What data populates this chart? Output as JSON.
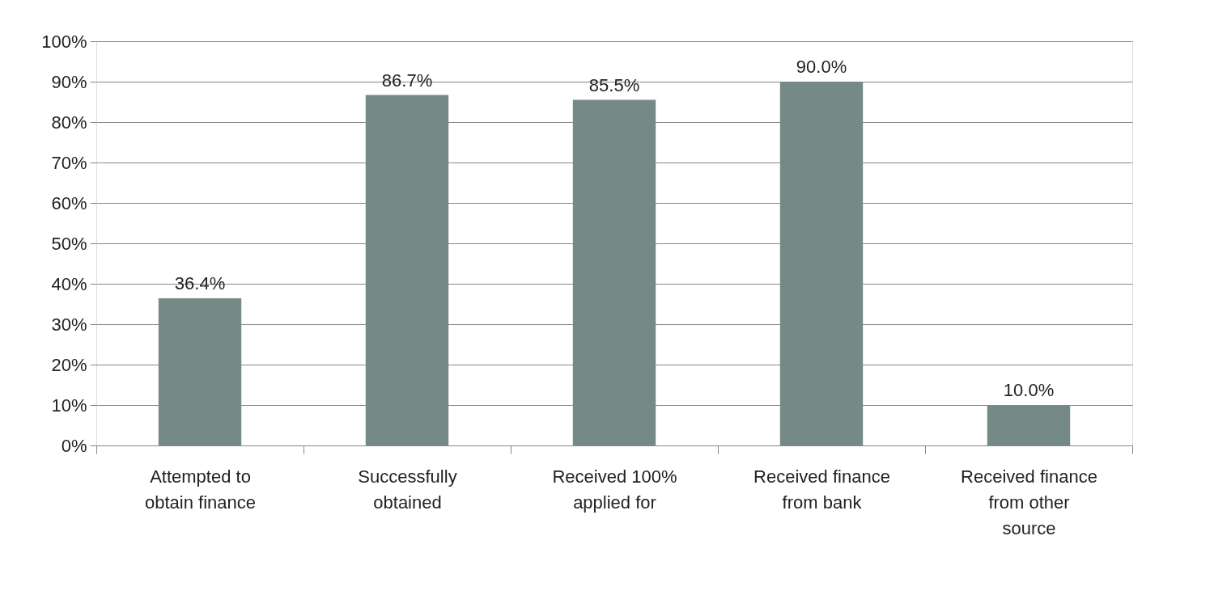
{
  "chart_data": {
    "type": "bar",
    "categories": [
      "Attempted to obtain finance",
      "Successfully obtained",
      "Received 100% applied for",
      "Received finance from bank",
      "Received finance from other source"
    ],
    "values": [
      36.4,
      86.7,
      85.5,
      90.0,
      10.0
    ],
    "value_labels": [
      "36.4%",
      "86.7%",
      "85.5%",
      "90.0%",
      "10.0%"
    ],
    "color": "#758a87",
    "ylim": [
      0,
      100
    ],
    "yticks": [
      {
        "value": 0,
        "label": "0%"
      },
      {
        "value": 10,
        "label": "10%"
      },
      {
        "value": 20,
        "label": "20%"
      },
      {
        "value": 30,
        "label": "30%"
      },
      {
        "value": 40,
        "label": "40%"
      },
      {
        "value": 50,
        "label": "50%"
      },
      {
        "value": 60,
        "label": "60%"
      },
      {
        "value": 70,
        "label": "70%"
      },
      {
        "value": 80,
        "label": "80%"
      },
      {
        "value": 90,
        "label": "90%"
      },
      {
        "value": 100,
        "label": "100%"
      }
    ],
    "grid": "y"
  }
}
